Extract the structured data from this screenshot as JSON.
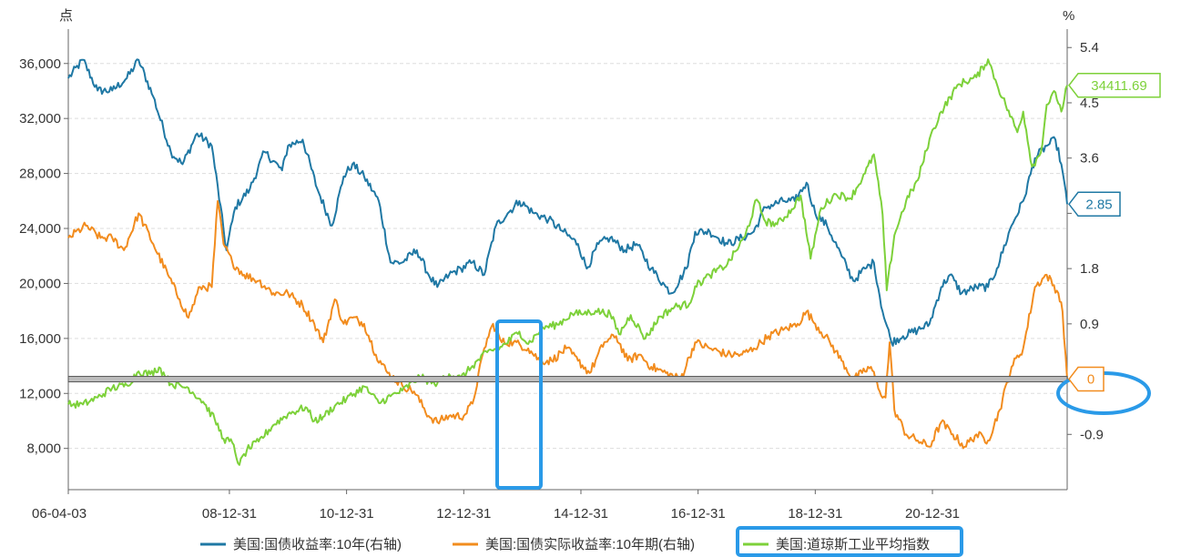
{
  "chart_data": {
    "type": "line",
    "title": "",
    "left_axis": {
      "unit": "点",
      "ylim": [
        5000,
        38500
      ],
      "ticks": [
        8000,
        12000,
        16000,
        20000,
        24000,
        28000,
        32000,
        36000
      ],
      "tick_labels": [
        "8,000",
        "12,000",
        "16,000",
        "20,000",
        "24,000",
        "28,000",
        "32,000",
        "36,000"
      ]
    },
    "right_axis": {
      "unit": "%",
      "ylim": [
        -1.8,
        5.7
      ],
      "ticks": [
        -0.9,
        0.0,
        0.9,
        1.8,
        2.7,
        3.6,
        4.5,
        5.4
      ],
      "tick_labels": [
        "-0.9",
        "",
        "0.9",
        "1.8",
        "",
        "3.6",
        "4.5",
        "5.4"
      ]
    },
    "x_axis": {
      "start": 2006.25,
      "end": 2023.3,
      "ticks": [
        2006.25,
        2009.0,
        2011.0,
        2013.0,
        2015.0,
        2017.0,
        2019.0,
        2021.0
      ],
      "tick_labels": [
        "06-04-03",
        "08-12-31",
        "10-12-31",
        "12-12-31",
        "14-12-31",
        "16-12-31",
        "18-12-31",
        "20-12-31"
      ]
    },
    "grid": true,
    "legend_position": "bottom",
    "series": [
      {
        "name": "美国:国债收益率:10年(右轴)",
        "axis": "right",
        "color": "#1f78a4",
        "end_label": "2.85",
        "points": [
          [
            2006.25,
            4.9
          ],
          [
            2006.5,
            5.2
          ],
          [
            2006.75,
            4.7
          ],
          [
            2007.0,
            4.7
          ],
          [
            2007.25,
            4.9
          ],
          [
            2007.45,
            5.2
          ],
          [
            2007.7,
            4.6
          ],
          [
            2008.0,
            3.7
          ],
          [
            2008.2,
            3.5
          ],
          [
            2008.45,
            4.0
          ],
          [
            2008.7,
            3.8
          ],
          [
            2008.95,
            2.1
          ],
          [
            2009.1,
            2.8
          ],
          [
            2009.35,
            3.1
          ],
          [
            2009.6,
            3.7
          ],
          [
            2009.9,
            3.4
          ],
          [
            2010.0,
            3.8
          ],
          [
            2010.25,
            3.9
          ],
          [
            2010.5,
            3.1
          ],
          [
            2010.75,
            2.5
          ],
          [
            2010.95,
            3.3
          ],
          [
            2011.1,
            3.5
          ],
          [
            2011.3,
            3.3
          ],
          [
            2011.55,
            2.9
          ],
          [
            2011.75,
            1.9
          ],
          [
            2011.95,
            1.9
          ],
          [
            2012.2,
            2.1
          ],
          [
            2012.4,
            1.7
          ],
          [
            2012.55,
            1.5
          ],
          [
            2012.75,
            1.7
          ],
          [
            2012.95,
            1.8
          ],
          [
            2013.15,
            1.9
          ],
          [
            2013.35,
            1.7
          ],
          [
            2013.55,
            2.5
          ],
          [
            2013.75,
            2.7
          ],
          [
            2013.95,
            2.9
          ],
          [
            2014.2,
            2.7
          ],
          [
            2014.45,
            2.6
          ],
          [
            2014.7,
            2.4
          ],
          [
            2014.95,
            2.2
          ],
          [
            2015.1,
            1.8
          ],
          [
            2015.3,
            2.2
          ],
          [
            2015.5,
            2.3
          ],
          [
            2015.75,
            2.1
          ],
          [
            2015.95,
            2.2
          ],
          [
            2016.2,
            1.8
          ],
          [
            2016.45,
            1.5
          ],
          [
            2016.55,
            1.4
          ],
          [
            2016.8,
            1.8
          ],
          [
            2016.95,
            2.4
          ],
          [
            2017.2,
            2.4
          ],
          [
            2017.5,
            2.2
          ],
          [
            2017.75,
            2.3
          ],
          [
            2017.95,
            2.4
          ],
          [
            2018.15,
            2.8
          ],
          [
            2018.45,
            2.9
          ],
          [
            2018.65,
            2.9
          ],
          [
            2018.85,
            3.2
          ],
          [
            2019.0,
            2.7
          ],
          [
            2019.2,
            2.5
          ],
          [
            2019.45,
            2.0
          ],
          [
            2019.65,
            1.6
          ],
          [
            2019.85,
            1.8
          ],
          [
            2020.0,
            1.9
          ],
          [
            2020.15,
            1.1
          ],
          [
            2020.3,
            0.6
          ],
          [
            2020.5,
            0.7
          ],
          [
            2020.75,
            0.8
          ],
          [
            2020.95,
            0.9
          ],
          [
            2021.15,
            1.5
          ],
          [
            2021.3,
            1.7
          ],
          [
            2021.5,
            1.4
          ],
          [
            2021.75,
            1.5
          ],
          [
            2021.95,
            1.5
          ],
          [
            2022.1,
            1.8
          ],
          [
            2022.35,
            2.5
          ],
          [
            2022.55,
            2.9
          ],
          [
            2022.75,
            3.6
          ],
          [
            2022.95,
            3.8
          ],
          [
            2023.1,
            3.9
          ],
          [
            2023.2,
            3.5
          ],
          [
            2023.3,
            2.85
          ]
        ]
      },
      {
        "name": "美国:国债实际收益率:10年期(右轴)",
        "axis": "right",
        "color": "#f28c1e",
        "end_label": "0",
        "points": [
          [
            2006.25,
            2.3
          ],
          [
            2006.55,
            2.5
          ],
          [
            2006.8,
            2.3
          ],
          [
            2007.0,
            2.3
          ],
          [
            2007.2,
            2.1
          ],
          [
            2007.45,
            2.7
          ],
          [
            2007.7,
            2.2
          ],
          [
            2007.95,
            1.7
          ],
          [
            2008.15,
            1.3
          ],
          [
            2008.3,
            1.0
          ],
          [
            2008.5,
            1.5
          ],
          [
            2008.7,
            1.5
          ],
          [
            2008.8,
            2.9
          ],
          [
            2008.9,
            2.2
          ],
          [
            2009.05,
            1.9
          ],
          [
            2009.25,
            1.7
          ],
          [
            2009.5,
            1.6
          ],
          [
            2009.75,
            1.4
          ],
          [
            2010.0,
            1.4
          ],
          [
            2010.25,
            1.2
          ],
          [
            2010.45,
            0.9
          ],
          [
            2010.6,
            0.6
          ],
          [
            2010.8,
            1.3
          ],
          [
            2010.95,
            0.9
          ],
          [
            2011.1,
            1.0
          ],
          [
            2011.3,
            0.9
          ],
          [
            2011.5,
            0.4
          ],
          [
            2011.7,
            0.1
          ],
          [
            2011.95,
            -0.1
          ],
          [
            2012.15,
            -0.2
          ],
          [
            2012.4,
            -0.6
          ],
          [
            2012.55,
            -0.7
          ],
          [
            2012.75,
            -0.6
          ],
          [
            2013.0,
            -0.6
          ],
          [
            2013.15,
            -0.4
          ],
          [
            2013.35,
            0.5
          ],
          [
            2013.5,
            0.9
          ],
          [
            2013.65,
            0.6
          ],
          [
            2013.85,
            0.6
          ],
          [
            2014.1,
            0.5
          ],
          [
            2014.3,
            0.3
          ],
          [
            2014.5,
            0.3
          ],
          [
            2014.75,
            0.5
          ],
          [
            2014.95,
            0.3
          ],
          [
            2015.15,
            0.1
          ],
          [
            2015.4,
            0.6
          ],
          [
            2015.6,
            0.7
          ],
          [
            2015.8,
            0.3
          ],
          [
            2016.0,
            0.4
          ],
          [
            2016.2,
            0.2
          ],
          [
            2016.45,
            0.1
          ],
          [
            2016.7,
            0.0
          ],
          [
            2016.95,
            0.6
          ],
          [
            2017.2,
            0.5
          ],
          [
            2017.5,
            0.4
          ],
          [
            2017.75,
            0.4
          ],
          [
            2017.95,
            0.5
          ],
          [
            2018.2,
            0.7
          ],
          [
            2018.45,
            0.8
          ],
          [
            2018.7,
            0.9
          ],
          [
            2018.85,
            1.1
          ],
          [
            2019.0,
            0.9
          ],
          [
            2019.25,
            0.6
          ],
          [
            2019.45,
            0.3
          ],
          [
            2019.65,
            0.0
          ],
          [
            2019.8,
            0.1
          ],
          [
            2019.95,
            0.2
          ],
          [
            2020.1,
            -0.2
          ],
          [
            2020.2,
            -0.3
          ],
          [
            2020.27,
            0.6
          ],
          [
            2020.35,
            -0.5
          ],
          [
            2020.55,
            -0.9
          ],
          [
            2020.75,
            -1.0
          ],
          [
            2020.95,
            -1.1
          ],
          [
            2021.15,
            -0.7
          ],
          [
            2021.35,
            -0.9
          ],
          [
            2021.55,
            -1.1
          ],
          [
            2021.75,
            -0.9
          ],
          [
            2021.95,
            -1.0
          ],
          [
            2022.15,
            -0.5
          ],
          [
            2022.35,
            0.2
          ],
          [
            2022.55,
            0.5
          ],
          [
            2022.75,
            1.5
          ],
          [
            2022.95,
            1.7
          ],
          [
            2023.15,
            1.4
          ],
          [
            2023.22,
            1.1
          ],
          [
            2023.3,
            0.0
          ]
        ]
      },
      {
        "name": "美国:道琼斯工业平均指数",
        "axis": "left",
        "color": "#7dd13a",
        "end_label": "34411.69",
        "points": [
          [
            2006.25,
            11200
          ],
          [
            2006.5,
            11200
          ],
          [
            2006.75,
            11700
          ],
          [
            2007.0,
            12400
          ],
          [
            2007.25,
            12600
          ],
          [
            2007.45,
            13600
          ],
          [
            2007.65,
            13400
          ],
          [
            2007.8,
            13900
          ],
          [
            2008.0,
            12700
          ],
          [
            2008.3,
            12400
          ],
          [
            2008.55,
            11400
          ],
          [
            2008.75,
            10100
          ],
          [
            2008.9,
            8700
          ],
          [
            2009.05,
            8400
          ],
          [
            2009.17,
            6800
          ],
          [
            2009.3,
            7900
          ],
          [
            2009.5,
            8500
          ],
          [
            2009.75,
            9700
          ],
          [
            2010.0,
            10500
          ],
          [
            2010.3,
            11000
          ],
          [
            2010.45,
            10000
          ],
          [
            2010.6,
            10300
          ],
          [
            2010.8,
            11100
          ],
          [
            2011.0,
            11600
          ],
          [
            2011.3,
            12500
          ],
          [
            2011.55,
            11300
          ],
          [
            2011.75,
            11800
          ],
          [
            2011.95,
            12200
          ],
          [
            2012.25,
            13200
          ],
          [
            2012.5,
            12700
          ],
          [
            2012.75,
            13400
          ],
          [
            2012.95,
            13100
          ],
          [
            2013.15,
            14000
          ],
          [
            2013.4,
            15000
          ],
          [
            2013.65,
            15400
          ],
          [
            2013.95,
            16500
          ],
          [
            2014.1,
            15600
          ],
          [
            2014.35,
            16800
          ],
          [
            2014.6,
            17000
          ],
          [
            2014.85,
            17800
          ],
          [
            2015.0,
            17800
          ],
          [
            2015.25,
            18000
          ],
          [
            2015.5,
            17800
          ],
          [
            2015.65,
            16300
          ],
          [
            2015.85,
            17700
          ],
          [
            2016.1,
            16000
          ],
          [
            2016.35,
            17600
          ],
          [
            2016.6,
            18300
          ],
          [
            2016.85,
            18500
          ],
          [
            2016.95,
            19800
          ],
          [
            2017.2,
            20600
          ],
          [
            2017.5,
            21400
          ],
          [
            2017.8,
            23400
          ],
          [
            2018.0,
            26100
          ],
          [
            2018.15,
            24500
          ],
          [
            2018.35,
            24300
          ],
          [
            2018.6,
            25400
          ],
          [
            2018.75,
            26400
          ],
          [
            2018.92,
            21800
          ],
          [
            2019.1,
            25500
          ],
          [
            2019.35,
            26500
          ],
          [
            2019.6,
            26200
          ],
          [
            2019.85,
            28000
          ],
          [
            2020.0,
            29400
          ],
          [
            2020.15,
            25000
          ],
          [
            2020.22,
            19500
          ],
          [
            2020.35,
            23500
          ],
          [
            2020.55,
            26000
          ],
          [
            2020.75,
            27500
          ],
          [
            2020.95,
            30500
          ],
          [
            2021.15,
            32500
          ],
          [
            2021.45,
            34500
          ],
          [
            2021.75,
            35000
          ],
          [
            2021.95,
            36300
          ],
          [
            2022.1,
            34500
          ],
          [
            2022.25,
            33000
          ],
          [
            2022.45,
            31000
          ],
          [
            2022.55,
            32500
          ],
          [
            2022.7,
            28500
          ],
          [
            2022.85,
            29500
          ],
          [
            2022.95,
            33000
          ],
          [
            2023.1,
            33900
          ],
          [
            2023.2,
            32500
          ],
          [
            2023.3,
            34411.69
          ]
        ]
      }
    ],
    "annotations": {
      "reference_line_value": 0
    }
  }
}
